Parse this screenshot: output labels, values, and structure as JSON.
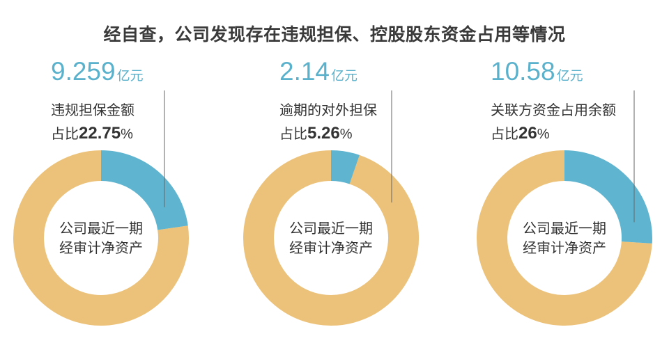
{
  "title": "经自查，公司发现存在违规担保、控股股东资金占用等情况",
  "colors": {
    "share": "#5fb4cf",
    "rest": "#ecc27a",
    "amount": "#5ab1cc",
    "leader": "#666666"
  },
  "chart_data": [
    {
      "type": "pie",
      "amount": "9.259",
      "unit": "亿元",
      "label": "违规担保金额",
      "share_prefix": "占比",
      "share_value": "22.75",
      "share_unit": "%",
      "center_lines": [
        "公司最近一期",
        "经审计净资产"
      ],
      "slices": [
        {
          "name": "违规担保金额",
          "value": 22.75
        },
        {
          "name": "公司最近一期经审计净资产",
          "value": 77.25
        }
      ]
    },
    {
      "type": "pie",
      "amount": "2.14",
      "unit": "亿元",
      "label": "逾期的对外担保",
      "share_prefix": "占比",
      "share_value": "5.26",
      "share_unit": "%",
      "center_lines": [
        "公司最近一期",
        "经审计净资产"
      ],
      "slices": [
        {
          "name": "逾期的对外担保",
          "value": 5.26
        },
        {
          "name": "公司最近一期经审计净资产",
          "value": 94.74
        }
      ]
    },
    {
      "type": "pie",
      "amount": "10.58",
      "unit": "亿元",
      "label": "关联方资金占用余额",
      "share_prefix": "占比",
      "share_value": "26",
      "share_unit": "%",
      "center_lines": [
        "公司最近一期",
        "经审计净资产"
      ],
      "slices": [
        {
          "name": "关联方资金占用余额",
          "value": 26
        },
        {
          "name": "公司最近一期经审计净资产",
          "value": 74
        }
      ]
    }
  ]
}
